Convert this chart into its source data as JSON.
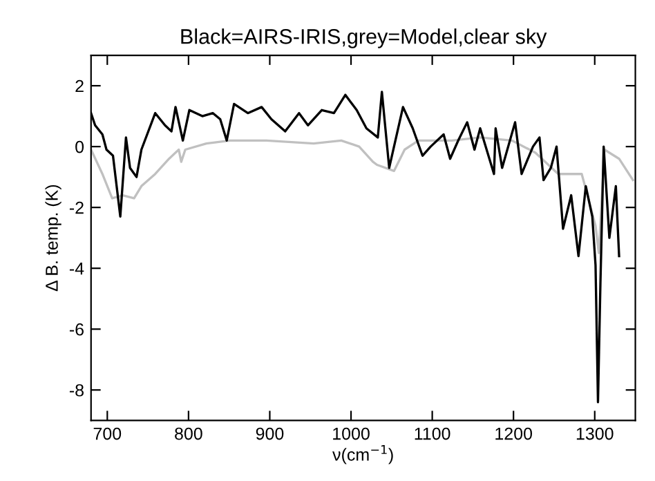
{
  "chart_data": {
    "type": "line",
    "title": "Black=AIRS-IRIS,grey=Model,clear sky",
    "xlabel": "ν(cm$^{−1}$)",
    "ylabel": "Δ B. temp. (K)",
    "xlim": [
      680,
      1350
    ],
    "xticks": [
      700,
      800,
      900,
      1000,
      1100,
      1200,
      1300
    ],
    "ylim": [
      -9,
      3
    ],
    "yticks": [
      -8,
      -6,
      -4,
      -2,
      0,
      2
    ],
    "grid": false,
    "legend": false,
    "marker": "none",
    "line_style": "solid",
    "series": [
      {
        "color": "#000000",
        "x": [
          680,
          685,
          694,
          699,
          707,
          716,
          723,
          728,
          736,
          742,
          759,
          771,
          779,
          784,
          793,
          801,
          817,
          830,
          839,
          847,
          856,
          873,
          890,
          902,
          919,
          936,
          947,
          964,
          979,
          993,
          1007,
          1019,
          1033,
          1038,
          1047,
          1064,
          1076,
          1088,
          1098,
          1114,
          1122,
          1132,
          1143,
          1152,
          1159,
          1176,
          1178,
          1186,
          1202,
          1210,
          1224,
          1232,
          1237,
          1246,
          1253,
          1261,
          1271,
          1280,
          1289,
          1297,
          1301,
          1304,
          1307,
          1311,
          1318,
          1326,
          1330
        ],
        "values": [
          1.1,
          0.7,
          0.4,
          -0.1,
          -0.3,
          -2.3,
          0.3,
          -0.7,
          -1.0,
          -0.1,
          1.1,
          0.7,
          0.5,
          1.3,
          0.2,
          1.2,
          1.0,
          1.1,
          0.9,
          0.2,
          1.4,
          1.1,
          1.3,
          0.9,
          0.5,
          1.1,
          0.7,
          1.2,
          1.1,
          1.7,
          1.2,
          0.6,
          0.3,
          1.8,
          -0.7,
          1.3,
          0.6,
          -0.3,
          0.0,
          0.4,
          -0.4,
          0.2,
          0.8,
          -0.1,
          0.6,
          -0.9,
          0.6,
          -0.7,
          0.8,
          -0.9,
          0.0,
          0.3,
          -1.1,
          -0.7,
          0.0,
          -2.7,
          -1.6,
          -3.6,
          -1.3,
          -2.3,
          -3.9,
          -8.4,
          -4.5,
          0.0,
          -3.0,
          -1.3,
          -3.6
        ]
      },
      {
        "color": "#c0c0c0",
        "x": [
          680,
          694,
          706,
          719,
          733,
          742,
          759,
          776,
          788,
          791,
          796,
          822,
          851,
          896,
          954,
          988,
          1010,
          1027,
          1032,
          1053,
          1066,
          1083,
          1124,
          1159,
          1198,
          1227,
          1255,
          1284,
          1301,
          1305,
          1312,
          1330,
          1347
        ],
        "values": [
          -0.1,
          -0.9,
          -1.7,
          -1.6,
          -1.7,
          -1.3,
          -0.9,
          -0.4,
          -0.1,
          -0.5,
          -0.1,
          0.1,
          0.2,
          0.2,
          0.1,
          0.2,
          0.0,
          -0.5,
          -0.6,
          -0.8,
          -0.1,
          0.2,
          0.2,
          0.3,
          0.2,
          -0.2,
          -0.9,
          -0.9,
          -2.6,
          -3.5,
          -0.1,
          -0.4,
          -1.1
        ]
      }
    ]
  }
}
